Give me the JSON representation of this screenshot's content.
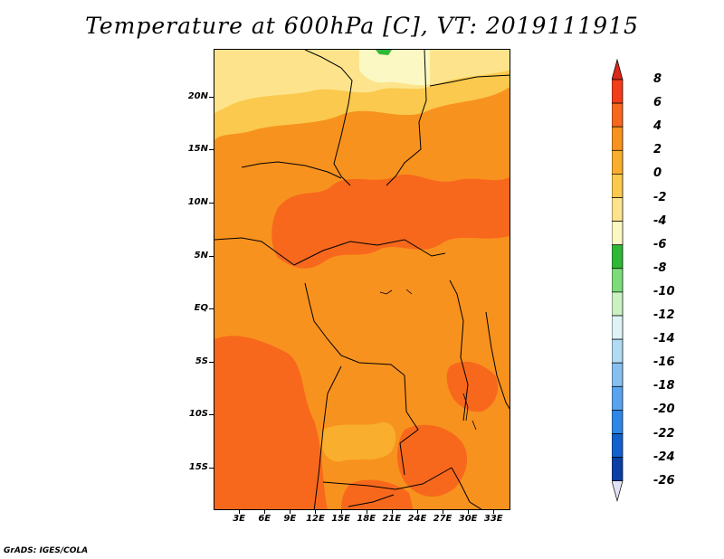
{
  "title": "Temperature at 600hPa [C], VT: 2019111915",
  "credit": "GrADS: IGES/COLA",
  "map": {
    "lat_range": [
      -19,
      24.5
    ],
    "lon_range": [
      0,
      35
    ],
    "y_ticks": [
      {
        "lat": 20,
        "label": "20N"
      },
      {
        "lat": 15,
        "label": "15N"
      },
      {
        "lat": 10,
        "label": "10N"
      },
      {
        "lat": 5,
        "label": "5N"
      },
      {
        "lat": 0,
        "label": "EQ"
      },
      {
        "lat": -5,
        "label": "5S"
      },
      {
        "lat": -10,
        "label": "10S"
      },
      {
        "lat": -15,
        "label": "15S"
      }
    ],
    "x_ticks": [
      {
        "lon": 3,
        "label": "3E"
      },
      {
        "lon": 6,
        "label": "6E"
      },
      {
        "lon": 9,
        "label": "9E"
      },
      {
        "lon": 12,
        "label": "12E"
      },
      {
        "lon": 15,
        "label": "15E"
      },
      {
        "lon": 18,
        "label": "18E"
      },
      {
        "lon": 21,
        "label": "21E"
      },
      {
        "lon": 24,
        "label": "24E"
      },
      {
        "lon": 27,
        "label": "27E"
      },
      {
        "lon": 30,
        "label": "30E"
      },
      {
        "lon": 33,
        "label": "33E"
      }
    ]
  },
  "colorbar": {
    "labels": [
      "8",
      "6",
      "4",
      "2",
      "0",
      "-2",
      "-4",
      "-6",
      "-8",
      "-10",
      "-12",
      "-14",
      "-16",
      "-18",
      "-20",
      "-22",
      "-24",
      "-26"
    ],
    "colors": {
      "over": "#d9271a",
      "c_6_8": "#f23c1a",
      "c_4_6": "#f7681c",
      "c_2_4": "#f8921e",
      "c_0_2": "#f9ae2d",
      "c_m2_0": "#fac94d",
      "c_m4_m2": "#fde48c",
      "c_m6_m4": "#fbf8c4",
      "c_m8_m6": "#2fb836",
      "c_m10_m8": "#7cdc7a",
      "c_m12_m10": "#c9f1c1",
      "c_m14_m12": "#ddf3f5",
      "c_m16_m14": "#b1dbf3",
      "c_m18_m16": "#87bff0",
      "c_m20_m18": "#5aa3ee",
      "c_m22_m20": "#2e86e6",
      "c_m24_m22": "#1261cd",
      "c_m26_m24": "#0a3fa6",
      "under": "#0b1a72",
      "below": "#e2e2f6"
    }
  }
}
